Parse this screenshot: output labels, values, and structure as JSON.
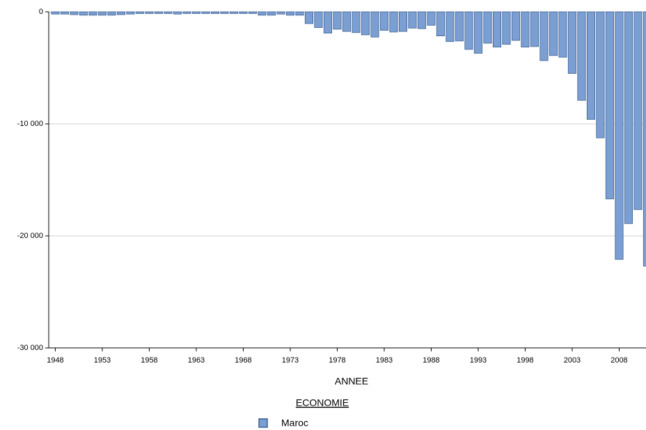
{
  "chart_data": {
    "type": "bar",
    "x_label": "ANNEE",
    "legend_title": "ECONOMIE",
    "x": [
      1948,
      1949,
      1950,
      1951,
      1952,
      1953,
      1954,
      1955,
      1956,
      1957,
      1958,
      1959,
      1960,
      1961,
      1962,
      1963,
      1964,
      1965,
      1966,
      1967,
      1968,
      1969,
      1970,
      1971,
      1972,
      1973,
      1974,
      1975,
      1976,
      1977,
      1978,
      1979,
      1980,
      1981,
      1982,
      1983,
      1984,
      1985,
      1986,
      1987,
      1988,
      1989,
      1990,
      1991,
      1992,
      1993,
      1994,
      1995,
      1996,
      1997,
      1998,
      1999,
      2000,
      2001,
      2002,
      2003,
      2004,
      2005,
      2006,
      2007,
      2008,
      2009,
      2010,
      2011
    ],
    "series": [
      {
        "name": "Maroc",
        "color": "#7b9fd3",
        "values": [
          -200,
          -200,
          -250,
          -300,
          -300,
          -300,
          -300,
          -250,
          -200,
          -150,
          -150,
          -150,
          -150,
          -200,
          -150,
          -150,
          -150,
          -150,
          -150,
          -150,
          -150,
          -150,
          -300,
          -300,
          -200,
          -300,
          -300,
          -1050,
          -1400,
          -1900,
          -1550,
          -1750,
          -1850,
          -2050,
          -2250,
          -1650,
          -1800,
          -1750,
          -1450,
          -1500,
          -1200,
          -2150,
          -2650,
          -2600,
          -3350,
          -3700,
          -2800,
          -3150,
          -2900,
          -2550,
          -3150,
          -3100,
          -4350,
          -3900,
          -4050,
          -5500,
          -7900,
          -9600,
          -11250,
          -16700,
          -22100,
          -18900,
          -17650,
          -22700
        ]
      }
    ],
    "xlim": [
      1947.3,
      2011.5
    ],
    "xticks": [
      1948,
      1953,
      1958,
      1963,
      1968,
      1973,
      1978,
      1983,
      1988,
      1993,
      1998,
      2003,
      2008
    ],
    "ylim": [
      -30000,
      0
    ],
    "yticks": [
      {
        "value": 0,
        "label": "0"
      },
      {
        "value": -10000,
        "label": "-10 000"
      },
      {
        "value": -20000,
        "label": "-20 000"
      },
      {
        "value": -30000,
        "label": "-30 000"
      }
    ],
    "grid": true
  }
}
